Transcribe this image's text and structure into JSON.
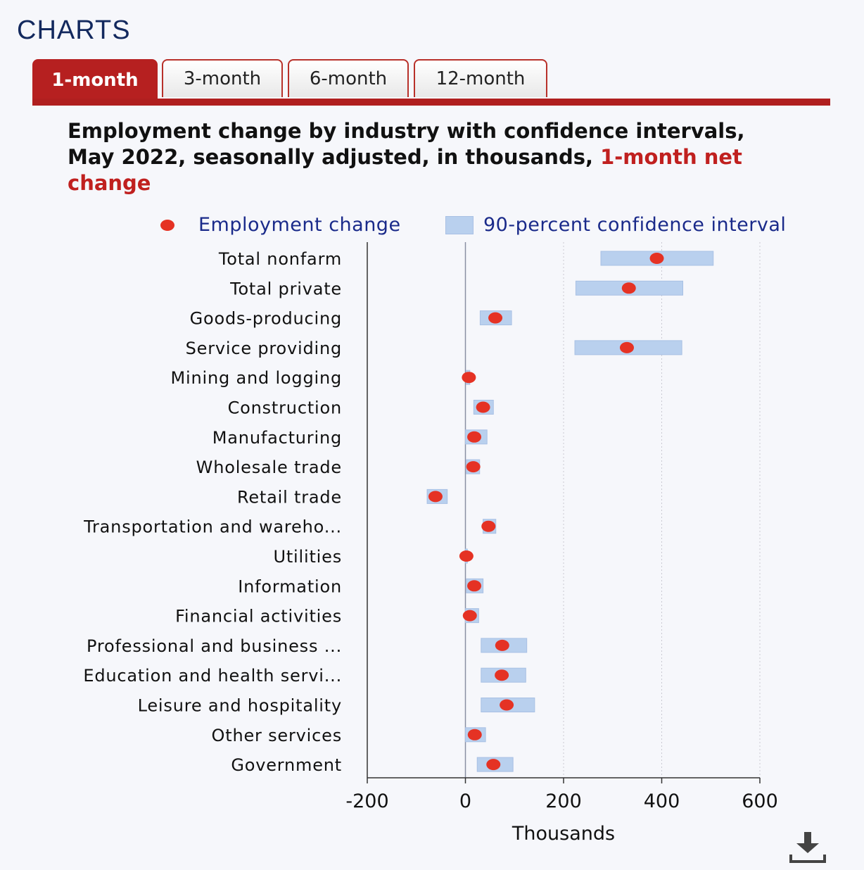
{
  "header": {
    "title": "CHARTS"
  },
  "tabs": [
    {
      "label": "1-month",
      "active": true
    },
    {
      "label": "3-month",
      "active": false
    },
    {
      "label": "6-month",
      "active": false
    },
    {
      "label": "12-month",
      "active": false
    }
  ],
  "colors": {
    "accent": "#b62020",
    "point": "#e53224",
    "interval": "#b9d0ee",
    "legend_text": "#1a2a8a"
  },
  "chart_data": {
    "type": "scatter",
    "title_main": "Employment change by industry with confidence intervals, May 2022, seasonally adjusted, in thousands, ",
    "title_accent": "1-month net change",
    "legend": {
      "point_label": "Employment change",
      "interval_label": "90-percent confidence interval"
    },
    "xlabel": "Thousands",
    "xlim": [
      -200,
      600
    ],
    "xticks": [
      -200,
      0,
      200,
      400,
      600
    ],
    "categories": [
      "Total nonfarm",
      "Total private",
      "Goods-producing",
      "Service providing",
      "Mining and logging",
      "Construction",
      "Manufacturing",
      "Wholesale trade",
      "Retail trade",
      "Transportation and wareho...",
      "Utilities",
      "Information",
      "Financial activities",
      "Professional and business ...",
      "Education and health servi...",
      "Leisure and hospitality",
      "Other services",
      "Government"
    ],
    "values": [
      390,
      333,
      61,
      329,
      7,
      36,
      18,
      16,
      -61,
      47,
      2,
      18,
      9,
      75,
      74,
      84,
      19,
      57
    ],
    "ci_low": [
      276,
      225,
      30,
      223,
      2,
      17,
      0,
      2,
      -78,
      36,
      0,
      2,
      0,
      32,
      32,
      32,
      0,
      24
    ],
    "ci_high": [
      505,
      443,
      94,
      441,
      9,
      57,
      44,
      29,
      -37,
      62,
      4,
      36,
      27,
      125,
      123,
      141,
      41,
      97
    ]
  }
}
